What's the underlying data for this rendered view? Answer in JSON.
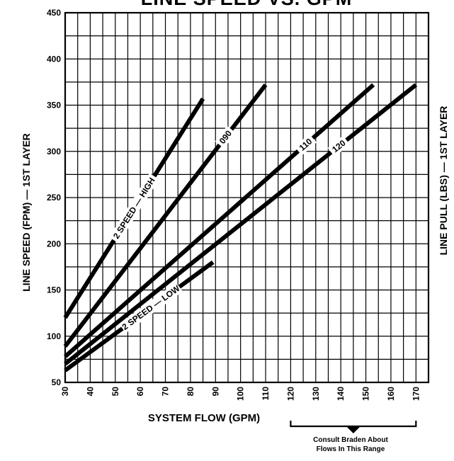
{
  "chart_data": {
    "type": "line",
    "title": "LINE SPEED VS. GPM",
    "xlabel": "SYSTEM FLOW (GPM)",
    "ylabel": "LINE SPEED (FPM) — 1ST LAYER",
    "y2label": "LINE PULL (LBS) — 1ST LAYER",
    "xlim": [
      30,
      175
    ],
    "ylim": [
      50,
      450
    ],
    "x_ticks": [
      "30",
      "40",
      "50",
      "60",
      "70",
      "80",
      "90",
      "100",
      "110",
      "120",
      "130",
      "140",
      "150",
      "160",
      "170"
    ],
    "y_ticks": [
      "50",
      "100",
      "150",
      "200",
      "250",
      "300",
      "350",
      "400",
      "450"
    ],
    "grid": true,
    "series": [
      {
        "name": "2 SPEED — HIGH",
        "x": [
          30,
          85
        ],
        "y": [
          120,
          357
        ],
        "label_t": 0.5
      },
      {
        "name": "090",
        "x": [
          30,
          110
        ],
        "y": [
          89,
          372
        ],
        "label_t": 0.8
      },
      {
        "name": "110",
        "x": [
          30,
          153
        ],
        "y": [
          78,
          372
        ],
        "label_t": 0.78
      },
      {
        "name": "120",
        "x": [
          30,
          170
        ],
        "y": [
          70,
          372
        ],
        "label_t": 0.78
      },
      {
        "name": "2 SPEED — LOW",
        "x": [
          30,
          89
        ],
        "y": [
          63,
          180
        ],
        "label_t": 0.58
      }
    ],
    "annotation": {
      "text_line1": "Consult Braden About",
      "text_line2": "Flows In This Range",
      "x_range": [
        120,
        170
      ]
    }
  }
}
